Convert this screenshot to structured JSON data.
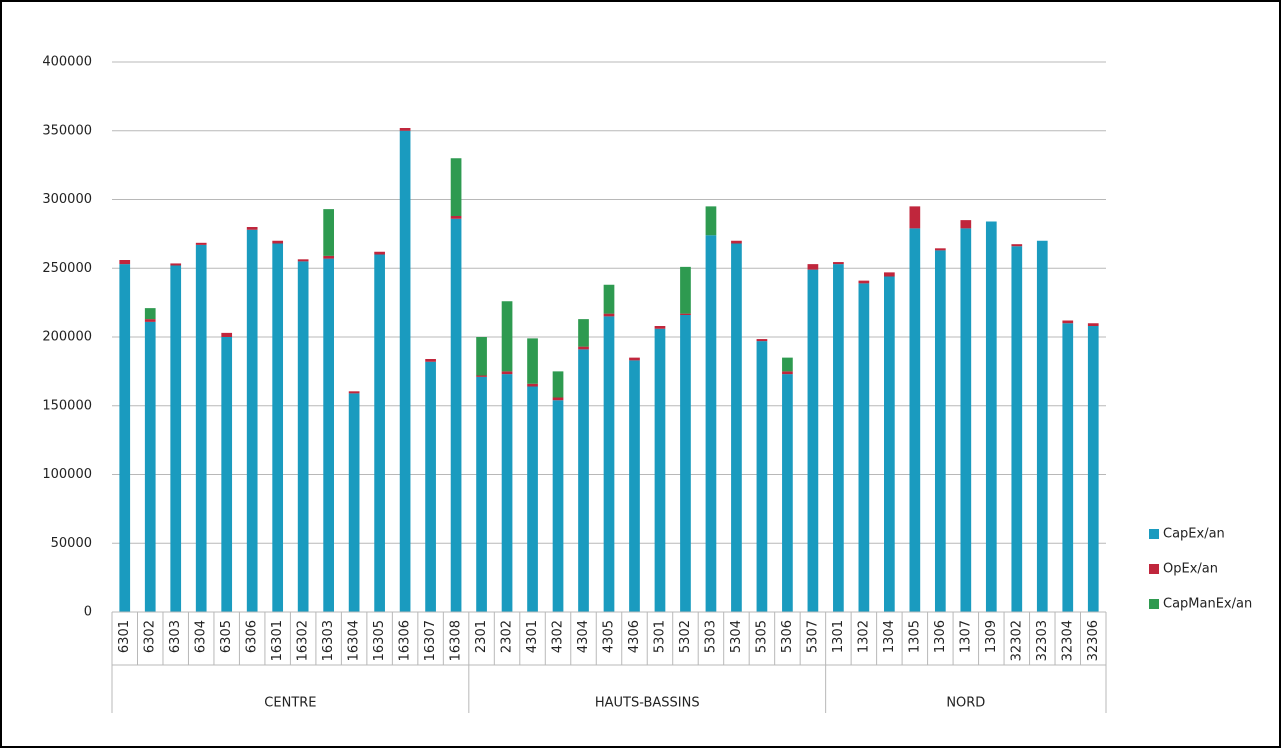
{
  "chart_data": {
    "type": "stacked-bar",
    "groups": [
      {
        "name": "CENTRE",
        "categories": [
          "6301",
          "6302",
          "6303",
          "6304",
          "6305",
          "6306",
          "16301",
          "16302",
          "16303",
          "16304",
          "16305",
          "16306",
          "16307",
          "16308"
        ]
      },
      {
        "name": "HAUTS-BASSINS",
        "categories": [
          "2301",
          "2302",
          "4301",
          "4302",
          "4304",
          "4305",
          "4306",
          "5301",
          "5302",
          "5303",
          "5304",
          "5305",
          "5306",
          "5307"
        ]
      },
      {
        "name": "NORD",
        "categories": [
          "1301",
          "1302",
          "1304",
          "1305",
          "1306",
          "1307",
          "1309",
          "32302",
          "32303",
          "32304",
          "32306"
        ]
      }
    ],
    "series": [
      {
        "name": "CapEx/an",
        "color": "#1a9bbf",
        "values": [
          253000,
          211000,
          252000,
          267000,
          200000,
          278000,
          268000,
          255000,
          257000,
          159000,
          260000,
          350000,
          182000,
          286000,
          171000,
          173000,
          164000,
          154000,
          191000,
          215000,
          183000,
          206000,
          216000,
          274000,
          268000,
          197000,
          173000,
          249000,
          253000,
          239000,
          244000,
          279000,
          263000,
          279000,
          284000,
          266000,
          270000,
          210000,
          208000
        ]
      },
      {
        "name": "OpEx/an",
        "color": "#c0263c",
        "values": [
          3000,
          2000,
          1500,
          1500,
          3000,
          2000,
          2000,
          1500,
          2000,
          1500,
          2000,
          2000,
          2000,
          2000,
          1000,
          2000,
          2000,
          2000,
          2000,
          2000,
          2000,
          2000,
          1000,
          0,
          2000,
          1500,
          2000,
          4000,
          1500,
          2000,
          3000,
          16000,
          1500,
          6000,
          0,
          1500,
          0,
          2000,
          2000
        ]
      },
      {
        "name": "CapManEx/an",
        "color": "#2e9a50",
        "values": [
          0,
          8000,
          0,
          0,
          0,
          0,
          0,
          0,
          34000,
          0,
          0,
          0,
          0,
          42000,
          28000,
          51000,
          33000,
          19000,
          20000,
          21000,
          0,
          0,
          34000,
          21000,
          0,
          0,
          10000,
          0,
          0,
          0,
          0,
          0,
          0,
          0,
          0,
          0,
          0,
          0,
          0
        ]
      }
    ],
    "ylim": [
      0,
      400000
    ],
    "yticks": [
      0,
      50000,
      100000,
      150000,
      200000,
      250000,
      300000,
      350000,
      400000
    ],
    "grid": true,
    "legend": "right"
  }
}
